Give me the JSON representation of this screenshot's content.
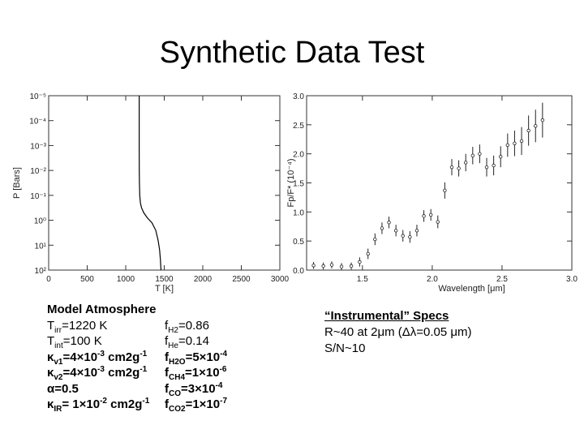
{
  "slide": {
    "title": "Synthetic Data Test"
  },
  "left_panel": {
    "header": "Model Atmosphere",
    "rows": [
      {
        "left": "T<sub>irr</sub>=1220 K",
        "right": "f<sub>H2</sub>=0.86"
      },
      {
        "left": "T<sub>int</sub>=100 K",
        "right": "f<sub>He</sub>=0.14"
      },
      {
        "left": "κ<sub>v1</sub>=4×10<sup>-3</sup> cm2g<sup>-1</sup>",
        "right": "f<sub>H2O</sub>=5×10<sup>-4</sup>",
        "bold": true
      },
      {
        "left": "κ<sub>v2</sub>=4×10<sup>-3</sup> cm2g<sup>-1</sup>",
        "right": "f<sub>CH4</sub>=1×10<sup>-6</sup>",
        "bold": true
      },
      {
        "left": "α=0.5",
        "right": "f<sub>CO</sub>=3×10<sup>-4</sup>",
        "bold": true
      },
      {
        "left": "κ<sub>IR</sub>= 1×10<sup>-2</sup> cm2g<sup>-1</sup>",
        "right": "f<sub>CO2</sub>=1×10<sup>-7</sup>",
        "bold": true
      }
    ]
  },
  "right_panel": {
    "header": "“Instrumental” Specs",
    "line1": "R~40 at 2μm (Δλ=0.05 μm)",
    "line2": "S/N~10"
  },
  "chart_data": [
    {
      "type": "line",
      "xlabel": "T [K]",
      "ylabel": "P [Bars]",
      "xlim": [
        0,
        3000
      ],
      "xticks": [
        "0",
        "500",
        "1000",
        "1500",
        "2000",
        "2500",
        "3000"
      ],
      "yscale": "log",
      "ylim": [
        -5,
        2
      ],
      "yticks": [
        "10⁻⁵",
        "10⁻⁴",
        "10⁻³",
        "10⁻²",
        "10⁻¹",
        "10⁰",
        "10¹",
        "10²"
      ],
      "series": [
        {
          "x": [
            1175,
            1175,
            1176,
            1178,
            1182,
            1190,
            1205,
            1235,
            1280,
            1340,
            1390,
            1420,
            1440,
            1450,
            1455,
            1458
          ],
          "logP": [
            -5,
            -3,
            -2,
            -1.5,
            -1,
            -0.7,
            -0.5,
            -0.3,
            -0.1,
            0.1,
            0.4,
            0.8,
            1.2,
            1.6,
            1.85,
            2
          ]
        }
      ]
    },
    {
      "type": "scatter",
      "xlabel": "Wavelength [μm]",
      "ylabel": "Fp/F* (10⁻⁴)",
      "xlim": [
        1.1,
        3.0
      ],
      "ylim": [
        0,
        3.0
      ],
      "xticks": [
        "1.5",
        "2.0",
        "2.5",
        "3.0"
      ],
      "yticks": [
        "0.0",
        "0.5",
        "1.0",
        "1.5",
        "2.0",
        "2.5",
        "3.0"
      ],
      "points": [
        {
          "x": 1.15,
          "y": 0.08,
          "e": 0.06
        },
        {
          "x": 1.22,
          "y": 0.07,
          "e": 0.06
        },
        {
          "x": 1.28,
          "y": 0.09,
          "e": 0.06
        },
        {
          "x": 1.35,
          "y": 0.06,
          "e": 0.06
        },
        {
          "x": 1.42,
          "y": 0.07,
          "e": 0.06
        },
        {
          "x": 1.48,
          "y": 0.14,
          "e": 0.08
        },
        {
          "x": 1.54,
          "y": 0.28,
          "e": 0.09
        },
        {
          "x": 1.59,
          "y": 0.53,
          "e": 0.1
        },
        {
          "x": 1.64,
          "y": 0.72,
          "e": 0.1
        },
        {
          "x": 1.69,
          "y": 0.82,
          "e": 0.1
        },
        {
          "x": 1.74,
          "y": 0.68,
          "e": 0.1
        },
        {
          "x": 1.79,
          "y": 0.59,
          "e": 0.1
        },
        {
          "x": 1.84,
          "y": 0.57,
          "e": 0.1
        },
        {
          "x": 1.89,
          "y": 0.68,
          "e": 0.1
        },
        {
          "x": 1.94,
          "y": 0.93,
          "e": 0.1
        },
        {
          "x": 1.99,
          "y": 0.95,
          "e": 0.1
        },
        {
          "x": 2.04,
          "y": 0.83,
          "e": 0.11
        },
        {
          "x": 2.09,
          "y": 1.37,
          "e": 0.14
        },
        {
          "x": 2.14,
          "y": 1.77,
          "e": 0.14
        },
        {
          "x": 2.19,
          "y": 1.75,
          "e": 0.14
        },
        {
          "x": 2.24,
          "y": 1.85,
          "e": 0.15
        },
        {
          "x": 2.29,
          "y": 1.97,
          "e": 0.15
        },
        {
          "x": 2.34,
          "y": 2.0,
          "e": 0.16
        },
        {
          "x": 2.39,
          "y": 1.77,
          "e": 0.16
        },
        {
          "x": 2.44,
          "y": 1.8,
          "e": 0.17
        },
        {
          "x": 2.49,
          "y": 1.95,
          "e": 0.18
        },
        {
          "x": 2.54,
          "y": 2.15,
          "e": 0.2
        },
        {
          "x": 2.59,
          "y": 2.18,
          "e": 0.22
        },
        {
          "x": 2.64,
          "y": 2.22,
          "e": 0.24
        },
        {
          "x": 2.69,
          "y": 2.4,
          "e": 0.26
        },
        {
          "x": 2.74,
          "y": 2.48,
          "e": 0.28
        },
        {
          "x": 2.79,
          "y": 2.58,
          "e": 0.3
        }
      ]
    }
  ]
}
